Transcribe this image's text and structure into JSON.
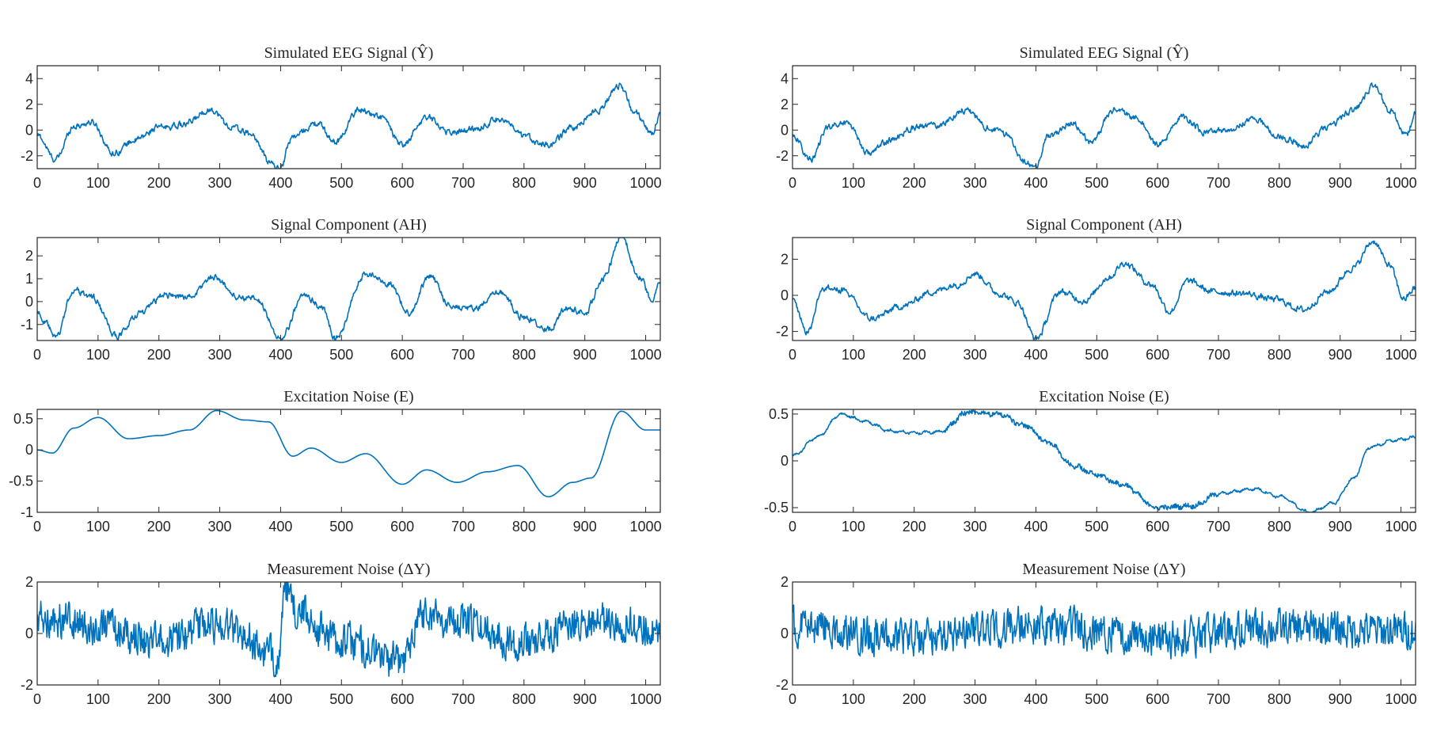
{
  "chart_data": [
    {
      "type": "line",
      "panel": "left-1",
      "title": "Simulated EEG Signal (Ŷ)",
      "xlim": [
        0,
        1024
      ],
      "ylim": [
        -3,
        5
      ],
      "xticks": [
        "0",
        "100",
        "200",
        "300",
        "400",
        "500",
        "600",
        "700",
        "800",
        "900",
        "1000"
      ],
      "yticks": [
        "-2",
        "0",
        "2",
        "4"
      ],
      "ytick_values": [
        -2,
        0,
        2,
        4
      ],
      "series": [
        {
          "shape": "rough",
          "color": "#0072BD",
          "points": [
            [
              0,
              -0.4
            ],
            [
              30,
              -2.3
            ],
            [
              60,
              0.3
            ],
            [
              90,
              0.6
            ],
            [
              125,
              -1.8
            ],
            [
              160,
              -0.8
            ],
            [
              200,
              0.2
            ],
            [
              240,
              0.4
            ],
            [
              285,
              1.6
            ],
            [
              320,
              0.2
            ],
            [
              350,
              -0.3
            ],
            [
              385,
              -2.6
            ],
            [
              398,
              -3.0
            ],
            [
              420,
              -0.5
            ],
            [
              460,
              0.5
            ],
            [
              490,
              -0.9
            ],
            [
              530,
              1.6
            ],
            [
              565,
              1.0
            ],
            [
              600,
              -1.2
            ],
            [
              640,
              1.0
            ],
            [
              680,
              -0.2
            ],
            [
              720,
              0.1
            ],
            [
              760,
              0.9
            ],
            [
              800,
              -0.5
            ],
            [
              840,
              -1.2
            ],
            [
              880,
              0.2
            ],
            [
              920,
              1.5
            ],
            [
              958,
              3.5
            ],
            [
              980,
              1.5
            ],
            [
              1010,
              -0.3
            ],
            [
              1024,
              1.4
            ]
          ]
        }
      ]
    },
    {
      "type": "line",
      "panel": "right-1",
      "title": "Simulated EEG Signal (Ŷ)",
      "xlim": [
        0,
        1024
      ],
      "ylim": [
        -3,
        5
      ],
      "xticks": [
        "0",
        "100",
        "200",
        "300",
        "400",
        "500",
        "600",
        "700",
        "800",
        "900",
        "1000"
      ],
      "yticks": [
        "-2",
        "0",
        "2",
        "4"
      ],
      "ytick_values": [
        -2,
        0,
        2,
        4
      ],
      "series": [
        {
          "shape": "rough",
          "color": "#0072BD",
          "points": [
            [
              0,
              -0.4
            ],
            [
              30,
              -2.3
            ],
            [
              60,
              0.3
            ],
            [
              90,
              0.6
            ],
            [
              125,
              -1.8
            ],
            [
              160,
              -0.8
            ],
            [
              200,
              0.2
            ],
            [
              240,
              0.4
            ],
            [
              285,
              1.6
            ],
            [
              320,
              0.2
            ],
            [
              350,
              -0.3
            ],
            [
              385,
              -2.6
            ],
            [
              398,
              -3.0
            ],
            [
              420,
              -0.5
            ],
            [
              460,
              0.5
            ],
            [
              490,
              -0.9
            ],
            [
              530,
              1.6
            ],
            [
              565,
              1.0
            ],
            [
              600,
              -1.2
            ],
            [
              640,
              1.0
            ],
            [
              680,
              -0.2
            ],
            [
              720,
              0.1
            ],
            [
              760,
              0.9
            ],
            [
              800,
              -0.5
            ],
            [
              840,
              -1.2
            ],
            [
              880,
              0.2
            ],
            [
              920,
              1.5
            ],
            [
              958,
              3.5
            ],
            [
              980,
              1.5
            ],
            [
              1010,
              -0.3
            ],
            [
              1024,
              1.4
            ]
          ]
        }
      ]
    },
    {
      "type": "line",
      "panel": "left-2",
      "title": "Signal Component (AH)",
      "xlim": [
        0,
        1024
      ],
      "ylim": [
        -1.7,
        2.8
      ],
      "xticks": [
        "0",
        "100",
        "200",
        "300",
        "400",
        "500",
        "600",
        "700",
        "800",
        "900",
        "1000"
      ],
      "yticks": [
        "-1",
        "0",
        "1",
        "2"
      ],
      "ytick_values": [
        -1,
        0,
        1,
        2
      ],
      "series": [
        {
          "shape": "rough",
          "color": "#0072BD",
          "points": [
            [
              0,
              -0.4
            ],
            [
              15,
              -1.0
            ],
            [
              30,
              -1.6
            ],
            [
              60,
              0.5
            ],
            [
              90,
              0.2
            ],
            [
              130,
              -1.5
            ],
            [
              170,
              -0.5
            ],
            [
              210,
              0.3
            ],
            [
              250,
              0.2
            ],
            [
              290,
              1.1
            ],
            [
              330,
              0.2
            ],
            [
              360,
              0.1
            ],
            [
              400,
              -1.6
            ],
            [
              440,
              0.3
            ],
            [
              470,
              -0.3
            ],
            [
              490,
              -1.6
            ],
            [
              540,
              1.2
            ],
            [
              580,
              0.8
            ],
            [
              610,
              -0.5
            ],
            [
              645,
              1.1
            ],
            [
              680,
              -0.2
            ],
            [
              720,
              -0.3
            ],
            [
              760,
              0.4
            ],
            [
              800,
              -0.7
            ],
            [
              840,
              -1.2
            ],
            [
              870,
              -0.3
            ],
            [
              900,
              -0.5
            ],
            [
              930,
              1.0
            ],
            [
              960,
              2.8
            ],
            [
              990,
              1.1
            ],
            [
              1010,
              0.1
            ],
            [
              1024,
              0.8
            ]
          ]
        }
      ]
    },
    {
      "type": "line",
      "panel": "right-2",
      "title": "Signal Component (AH)",
      "xlim": [
        0,
        1024
      ],
      "ylim": [
        -2.5,
        3.2
      ],
      "xticks": [
        "0",
        "100",
        "200",
        "300",
        "400",
        "500",
        "600",
        "700",
        "800",
        "900",
        "1000"
      ],
      "yticks": [
        "-2",
        "0",
        "2"
      ],
      "ytick_values": [
        -2,
        0,
        2
      ],
      "series": [
        {
          "shape": "rough",
          "color": "#0072BD",
          "points": [
            [
              0,
              -0.3
            ],
            [
              25,
              -2.0
            ],
            [
              50,
              0.4
            ],
            [
              80,
              0.3
            ],
            [
              130,
              -1.3
            ],
            [
              180,
              -0.6
            ],
            [
              230,
              0.2
            ],
            [
              270,
              0.6
            ],
            [
              300,
              1.2
            ],
            [
              340,
              0.1
            ],
            [
              370,
              -0.4
            ],
            [
              400,
              -2.4
            ],
            [
              440,
              0.2
            ],
            [
              480,
              -0.3
            ],
            [
              520,
              1.0
            ],
            [
              545,
              1.8
            ],
            [
              590,
              0.6
            ],
            [
              620,
              -0.9
            ],
            [
              650,
              0.8
            ],
            [
              690,
              0.2
            ],
            [
              740,
              0.1
            ],
            [
              790,
              -0.2
            ],
            [
              840,
              -0.8
            ],
            [
              880,
              0.2
            ],
            [
              920,
              1.5
            ],
            [
              955,
              3.0
            ],
            [
              980,
              1.7
            ],
            [
              1005,
              -0.2
            ],
            [
              1024,
              0.4
            ]
          ]
        }
      ]
    },
    {
      "type": "line",
      "panel": "left-3",
      "title": "Excitation Noise (E)",
      "xlim": [
        0,
        1024
      ],
      "ylim": [
        -1,
        0.65
      ],
      "xticks": [
        "0",
        "100",
        "200",
        "300",
        "400",
        "500",
        "600",
        "700",
        "800",
        "900",
        "1000"
      ],
      "yticks": [
        "-1",
        "-0.5",
        "0",
        "0.5"
      ],
      "ytick_values": [
        -1,
        -0.5,
        0,
        0.5
      ],
      "series": [
        {
          "shape": "smooth",
          "color": "#0072BD",
          "points": [
            [
              0,
              0.0
            ],
            [
              25,
              -0.05
            ],
            [
              60,
              0.35
            ],
            [
              100,
              0.52
            ],
            [
              150,
              0.18
            ],
            [
              200,
              0.23
            ],
            [
              250,
              0.32
            ],
            [
              295,
              0.63
            ],
            [
              340,
              0.48
            ],
            [
              380,
              0.45
            ],
            [
              420,
              -0.1
            ],
            [
              450,
              0.03
            ],
            [
              500,
              -0.2
            ],
            [
              540,
              -0.06
            ],
            [
              600,
              -0.55
            ],
            [
              640,
              -0.32
            ],
            [
              690,
              -0.52
            ],
            [
              740,
              -0.35
            ],
            [
              790,
              -0.25
            ],
            [
              840,
              -0.75
            ],
            [
              880,
              -0.52
            ],
            [
              910,
              -0.45
            ],
            [
              960,
              0.62
            ],
            [
              1000,
              0.32
            ],
            [
              1024,
              0.32
            ]
          ]
        }
      ]
    },
    {
      "type": "line",
      "panel": "right-3",
      "title": "Excitation Noise (E)",
      "xlim": [
        0,
        1024
      ],
      "ylim": [
        -0.55,
        0.55
      ],
      "xticks": [
        "0",
        "100",
        "200",
        "300",
        "400",
        "500",
        "600",
        "700",
        "800",
        "900",
        "1000"
      ],
      "yticks": [
        "-0.5",
        "0",
        "0.5"
      ],
      "ytick_values": [
        -0.5,
        0,
        0.5
      ],
      "series": [
        {
          "shape": "wavy",
          "color": "#0072BD",
          "points": [
            [
              0,
              0.05
            ],
            [
              40,
              0.25
            ],
            [
              80,
              0.5
            ],
            [
              120,
              0.42
            ],
            [
              160,
              0.32
            ],
            [
              200,
              0.3
            ],
            [
              240,
              0.31
            ],
            [
              290,
              0.52
            ],
            [
              340,
              0.5
            ],
            [
              380,
              0.38
            ],
            [
              420,
              0.2
            ],
            [
              460,
              -0.05
            ],
            [
              500,
              -0.15
            ],
            [
              540,
              -0.25
            ],
            [
              600,
              -0.5
            ],
            [
              660,
              -0.48
            ],
            [
              700,
              -0.35
            ],
            [
              760,
              -0.3
            ],
            [
              800,
              -0.38
            ],
            [
              850,
              -0.55
            ],
            [
              890,
              -0.45
            ],
            [
              920,
              -0.2
            ],
            [
              950,
              0.15
            ],
            [
              990,
              0.22
            ],
            [
              1024,
              0.25
            ]
          ]
        }
      ]
    },
    {
      "type": "line",
      "panel": "left-4",
      "title": "Measurement Noise (ΔY)",
      "xlim": [
        0,
        1024
      ],
      "ylim": [
        -2,
        2
      ],
      "xticks": [
        "0",
        "100",
        "200",
        "300",
        "400",
        "500",
        "600",
        "700",
        "800",
        "900",
        "1000"
      ],
      "yticks": [
        "-2",
        "0",
        "2"
      ],
      "ytick_values": [
        -2,
        0,
        2
      ],
      "series": [
        {
          "shape": "noise",
          "color": "#0072BD",
          "points": [
            [
              0,
              0.6
            ],
            [
              100,
              0.3
            ],
            [
              200,
              -0.4
            ],
            [
              300,
              0.4
            ],
            [
              395,
              -0.9
            ],
            [
              410,
              1.7
            ],
            [
              420,
              0.9
            ],
            [
              500,
              -0.3
            ],
            [
              600,
              -1.1
            ],
            [
              630,
              0.8
            ],
            [
              700,
              0.4
            ],
            [
              800,
              -0.3
            ],
            [
              900,
              0.5
            ],
            [
              1024,
              0.2
            ]
          ]
        }
      ]
    },
    {
      "type": "line",
      "panel": "right-4",
      "title": "Measurement Noise (ΔY)",
      "xlim": [
        0,
        1024
      ],
      "ylim": [
        -2,
        2
      ],
      "xticks": [
        "0",
        "100",
        "200",
        "300",
        "400",
        "500",
        "600",
        "700",
        "800",
        "900",
        "1000"
      ],
      "yticks": [
        "-2",
        "0",
        "2"
      ],
      "ytick_values": [
        -2,
        0,
        2
      ],
      "series": [
        {
          "shape": "noise",
          "color": "#0072BD",
          "points": [
            [
              0,
              0.3
            ],
            [
              200,
              -0.2
            ],
            [
              400,
              0.3
            ],
            [
              600,
              -0.2
            ],
            [
              800,
              0.2
            ],
            [
              1024,
              0.1
            ]
          ]
        }
      ]
    }
  ]
}
